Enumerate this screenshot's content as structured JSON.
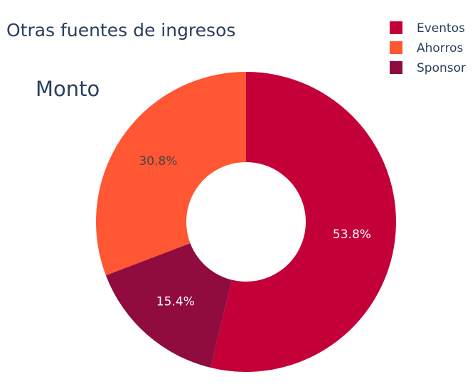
{
  "chart_data": {
    "type": "pie",
    "hole": true,
    "title": "Otras fuentes de ingresos",
    "subtitle": "Monto",
    "categories": [
      "Eventos",
      "Ahorros",
      "Sponsor"
    ],
    "percents": [
      53.8,
      30.8,
      15.4
    ],
    "percent_labels": [
      "53.8%",
      "30.8%",
      "15.4%"
    ],
    "slice_order": [
      "Eventos",
      "Sponsor",
      "Ahorros"
    ],
    "colors": {
      "Eventos": "#c40039",
      "Ahorros": "#ff5733",
      "Sponsor": "#900c3f"
    },
    "label_colors": {
      "Eventos": "#ffffff",
      "Ahorros": "#444444",
      "Sponsor": "#ffffff"
    },
    "legend": {
      "position": "top-right",
      "entries": [
        "Eventos",
        "Ahorros",
        "Sponsor"
      ]
    }
  }
}
